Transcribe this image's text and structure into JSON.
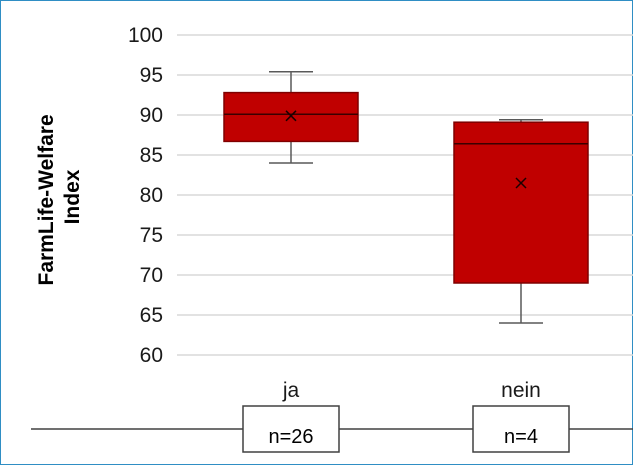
{
  "chart_data": {
    "type": "box",
    "ylabel_line1": "FarmLife-Welfare",
    "ylabel_line2": "Index",
    "ylim": [
      60,
      100
    ],
    "yticks": [
      60,
      65,
      70,
      75,
      80,
      85,
      90,
      95,
      100
    ],
    "grid": true,
    "box_color": "#c00000",
    "categories": [
      "ja",
      "nein"
    ],
    "boxes": [
      {
        "category": "ja",
        "min": 84,
        "q1": 86.7,
        "median": 90.1,
        "q3": 92.8,
        "max": 95.4,
        "mean": 89.9,
        "n_label": "n=26"
      },
      {
        "category": "nein",
        "min": 64,
        "q1": 69,
        "median": 86.4,
        "q3": 89.1,
        "max": 89.4,
        "mean": 81.5,
        "n_label": "n=4"
      }
    ]
  }
}
